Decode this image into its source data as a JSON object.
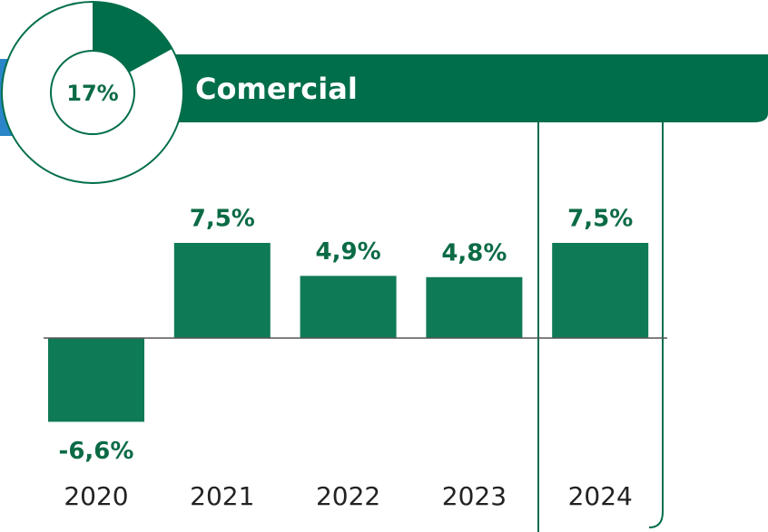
{
  "chart_data": [
    {
      "type": "pie",
      "values": [
        17
      ],
      "value_labels": [
        "17%"
      ],
      "color": "#006e4a"
    },
    {
      "type": "bar",
      "title": "Comercial",
      "categories": [
        "2020",
        "2021",
        "2022",
        "2023",
        "2024"
      ],
      "values": [
        -6.6,
        7.5,
        4.9,
        4.8,
        7.5
      ],
      "value_labels": [
        "-6,6%",
        "7,5%",
        "4,9%",
        "4,8%",
        "7,5%"
      ],
      "color": "#0f7a56"
    }
  ]
}
